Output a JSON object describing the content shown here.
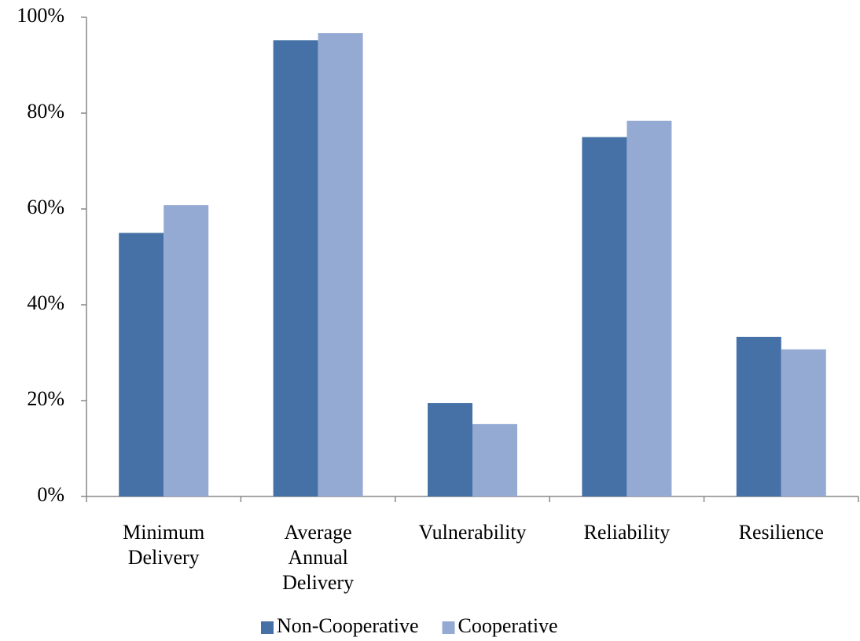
{
  "chart_data": {
    "type": "bar",
    "categories": [
      "Minimum Delivery",
      "Average Annual Delivery",
      "Vulnerability",
      "Reliability",
      "Resilience"
    ],
    "series": [
      {
        "name": "Non-Cooperative",
        "color": "#4571a6",
        "values": [
          55,
          95.2,
          19.5,
          75,
          33.3
        ]
      },
      {
        "name": "Cooperative",
        "color": "#95aad3",
        "values": [
          60.8,
          96.7,
          15.1,
          78.4,
          30.7
        ]
      }
    ],
    "ylim": [
      0,
      100
    ],
    "yticks": [
      {
        "value": 0,
        "label": "0%"
      },
      {
        "value": 20,
        "label": "20%"
      },
      {
        "value": 40,
        "label": "40%"
      },
      {
        "value": 60,
        "label": "60%"
      },
      {
        "value": 80,
        "label": "80%"
      },
      {
        "value": 100,
        "label": "100%"
      }
    ],
    "grid": false,
    "legend": "bottom"
  }
}
